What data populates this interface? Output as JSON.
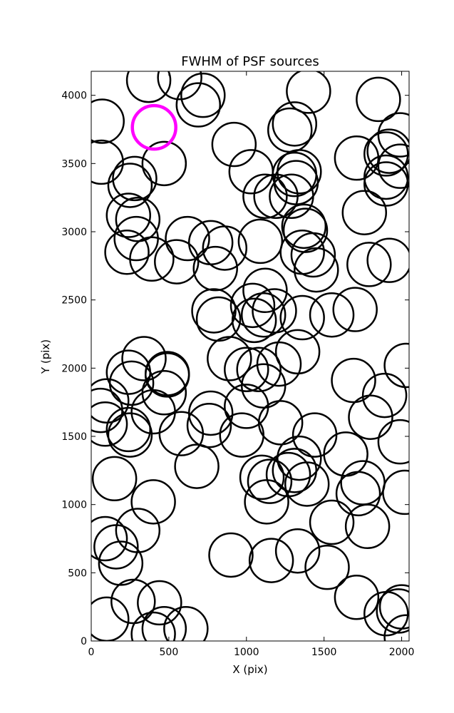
{
  "chart_data": {
    "type": "scatter",
    "title": "FWHM of PSF sources",
    "xlabel": "X (pix)",
    "ylabel": "Y (pix)",
    "xlim": [
      0,
      2048
    ],
    "ylim": [
      0,
      4176
    ],
    "xticks": [
      0,
      500,
      1000,
      1500,
      2000
    ],
    "yticks": [
      0,
      500,
      1000,
      1500,
      2000,
      2500,
      3000,
      3500,
      4000
    ],
    "grid": false,
    "marker_radius_pix": 140,
    "highlight_color": "#ff00ff",
    "source_color": "#000000",
    "highlight": {
      "x": 405,
      "y": 3765
    },
    "sources": [
      {
        "x": 370,
        "y": 4110
      },
      {
        "x": 570,
        "y": 4130
      },
      {
        "x": 720,
        "y": 4000
      },
      {
        "x": 690,
        "y": 3930
      },
      {
        "x": 1400,
        "y": 4030
      },
      {
        "x": 1850,
        "y": 3970
      },
      {
        "x": 70,
        "y": 3810
      },
      {
        "x": 1310,
        "y": 3790
      },
      {
        "x": 1280,
        "y": 3745
      },
      {
        "x": 1990,
        "y": 3710
      },
      {
        "x": 920,
        "y": 3640
      },
      {
        "x": 1710,
        "y": 3540
      },
      {
        "x": 1900,
        "y": 3570
      },
      {
        "x": 1920,
        "y": 3590
      },
      {
        "x": 65,
        "y": 3510
      },
      {
        "x": 470,
        "y": 3500
      },
      {
        "x": 1990,
        "y": 3480
      },
      {
        "x": 1030,
        "y": 3440
      },
      {
        "x": 1340,
        "y": 3440
      },
      {
        "x": 1310,
        "y": 3420
      },
      {
        "x": 280,
        "y": 3390
      },
      {
        "x": 1900,
        "y": 3400
      },
      {
        "x": 1900,
        "y": 3350
      },
      {
        "x": 250,
        "y": 3340
      },
      {
        "x": 1320,
        "y": 3360
      },
      {
        "x": 1120,
        "y": 3260
      },
      {
        "x": 1190,
        "y": 3260
      },
      {
        "x": 1290,
        "y": 3260
      },
      {
        "x": 1760,
        "y": 3140
      },
      {
        "x": 240,
        "y": 3120
      },
      {
        "x": 300,
        "y": 3090
      },
      {
        "x": 1370,
        "y": 3040
      },
      {
        "x": 1380,
        "y": 3010
      },
      {
        "x": 290,
        "y": 2950
      },
      {
        "x": 620,
        "y": 2950
      },
      {
        "x": 770,
        "y": 2920
      },
      {
        "x": 1090,
        "y": 2930
      },
      {
        "x": 860,
        "y": 2880
      },
      {
        "x": 230,
        "y": 2850
      },
      {
        "x": 1360,
        "y": 2850
      },
      {
        "x": 1430,
        "y": 2830
      },
      {
        "x": 390,
        "y": 2800
      },
      {
        "x": 550,
        "y": 2780
      },
      {
        "x": 1790,
        "y": 2760
      },
      {
        "x": 1920,
        "y": 2790
      },
      {
        "x": 800,
        "y": 2730
      },
      {
        "x": 1450,
        "y": 2720
      },
      {
        "x": 1120,
        "y": 2570
      },
      {
        "x": 1040,
        "y": 2460
      },
      {
        "x": 790,
        "y": 2420
      },
      {
        "x": 1180,
        "y": 2420
      },
      {
        "x": 1700,
        "y": 2430
      },
      {
        "x": 1110,
        "y": 2390
      },
      {
        "x": 1550,
        "y": 2390
      },
      {
        "x": 1360,
        "y": 2370
      },
      {
        "x": 820,
        "y": 2360
      },
      {
        "x": 1050,
        "y": 2350
      },
      {
        "x": 340,
        "y": 2070
      },
      {
        "x": 890,
        "y": 2070
      },
      {
        "x": 1330,
        "y": 2120
      },
      {
        "x": 2030,
        "y": 2020
      },
      {
        "x": 1210,
        "y": 2030
      },
      {
        "x": 1000,
        "y": 1990
      },
      {
        "x": 1080,
        "y": 1990
      },
      {
        "x": 240,
        "y": 1970
      },
      {
        "x": 490,
        "y": 1950
      },
      {
        "x": 490,
        "y": 1960
      },
      {
        "x": 1690,
        "y": 1910
      },
      {
        "x": 260,
        "y": 1890
      },
      {
        "x": 1110,
        "y": 1870
      },
      {
        "x": 470,
        "y": 1820
      },
      {
        "x": 1890,
        "y": 1800
      },
      {
        "x": 100,
        "y": 1760
      },
      {
        "x": 1000,
        "y": 1720
      },
      {
        "x": 60,
        "y": 1690
      },
      {
        "x": 400,
        "y": 1680
      },
      {
        "x": 770,
        "y": 1670
      },
      {
        "x": 1800,
        "y": 1640
      },
      {
        "x": 1220,
        "y": 1600
      },
      {
        "x": 90,
        "y": 1590
      },
      {
        "x": 760,
        "y": 1580
      },
      {
        "x": 240,
        "y": 1550
      },
      {
        "x": 250,
        "y": 1510
      },
      {
        "x": 580,
        "y": 1520
      },
      {
        "x": 970,
        "y": 1510
      },
      {
        "x": 1440,
        "y": 1510
      },
      {
        "x": 1990,
        "y": 1460
      },
      {
        "x": 1640,
        "y": 1370
      },
      {
        "x": 1340,
        "y": 1340
      },
      {
        "x": 680,
        "y": 1280
      },
      {
        "x": 1310,
        "y": 1250
      },
      {
        "x": 1270,
        "y": 1220
      },
      {
        "x": 1100,
        "y": 1200
      },
      {
        "x": 150,
        "y": 1190
      },
      {
        "x": 1150,
        "y": 1170
      },
      {
        "x": 1750,
        "y": 1160
      },
      {
        "x": 1390,
        "y": 1150
      },
      {
        "x": 1720,
        "y": 1080
      },
      {
        "x": 2020,
        "y": 1090
      },
      {
        "x": 1130,
        "y": 1020
      },
      {
        "x": 400,
        "y": 1020
      },
      {
        "x": 1550,
        "y": 870
      },
      {
        "x": 1780,
        "y": 840
      },
      {
        "x": 300,
        "y": 810
      },
      {
        "x": 90,
        "y": 750
      },
      {
        "x": 160,
        "y": 690
      },
      {
        "x": 1330,
        "y": 660
      },
      {
        "x": 900,
        "y": 630
      },
      {
        "x": 1160,
        "y": 590
      },
      {
        "x": 190,
        "y": 570
      },
      {
        "x": 1520,
        "y": 540
      },
      {
        "x": 1710,
        "y": 320
      },
      {
        "x": 270,
        "y": 290
      },
      {
        "x": 440,
        "y": 280
      },
      {
        "x": 2000,
        "y": 250
      },
      {
        "x": 1980,
        "y": 220
      },
      {
        "x": 1900,
        "y": 200
      },
      {
        "x": 100,
        "y": 160
      },
      {
        "x": 470,
        "y": 90
      },
      {
        "x": 610,
        "y": 90
      },
      {
        "x": 400,
        "y": 50
      },
      {
        "x": 2030,
        "y": 30
      }
    ]
  }
}
